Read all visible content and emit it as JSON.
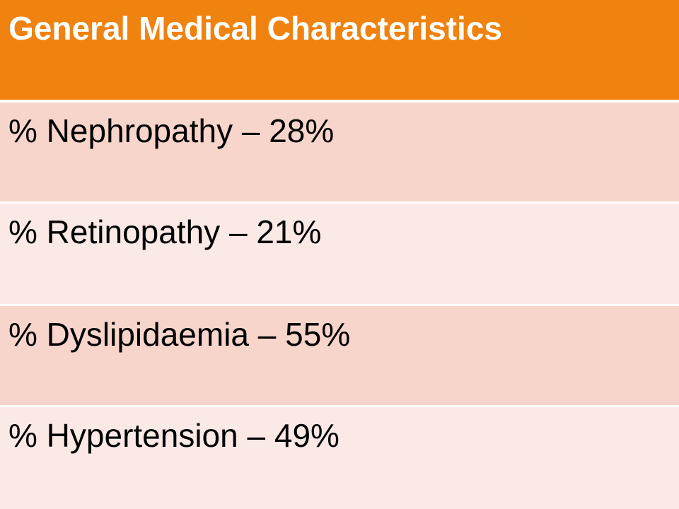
{
  "table": {
    "header": "General Medical Characteristics",
    "rows": [
      "% Nephropathy – 28%",
      "% Retinopathy  – 21%",
      "% Dyslipidaemia – 55%",
      "% Hypertension  – 49%"
    ]
  },
  "colors": {
    "header_bg": "#f0820f",
    "row_dark_bg": "#f7d5ca",
    "row_light_bg": "#fbe9e6"
  }
}
